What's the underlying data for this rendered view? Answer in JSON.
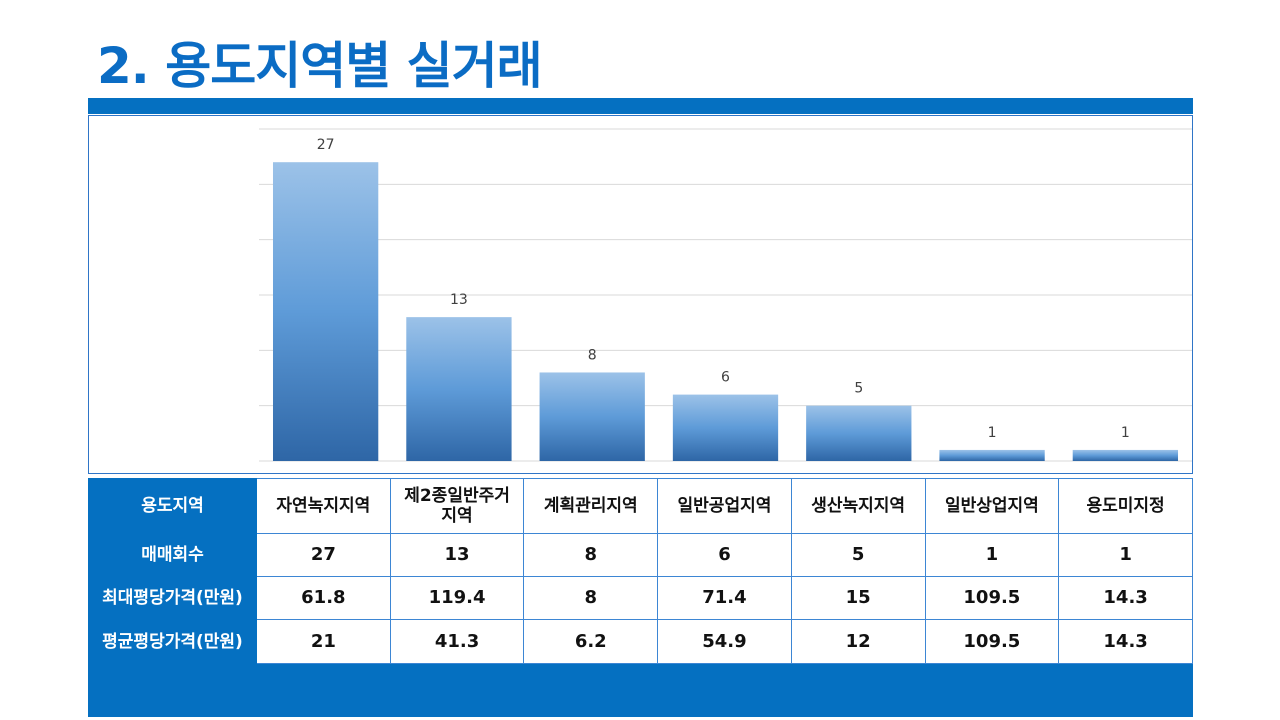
{
  "title": "2. 용도지역별 실거래",
  "chart_data": {
    "type": "bar",
    "categories": [
      "자연녹지지역",
      "제2종일반주거지역",
      "계획관리지역",
      "일반공업지역",
      "생산녹지지역",
      "일반상업지역",
      "용도미지정"
    ],
    "values": [
      27,
      13,
      8,
      6,
      5,
      1,
      1
    ],
    "ylim": [
      0,
      30
    ],
    "gridlines": [
      0,
      5,
      10,
      15,
      20,
      25,
      30
    ],
    "grid": true,
    "legend": "none"
  },
  "table": {
    "row_headers": [
      "용도지역",
      "매매회수",
      "최대평당가격(만원)",
      "평균평당가격(만원)"
    ],
    "zones": [
      "자연녹지지역",
      "제2종일반주거\n지역",
      "계획관리지역",
      "일반공업지역",
      "생산녹지지역",
      "일반상업지역",
      "용도미지정"
    ],
    "trades": [
      "27",
      "13",
      "8",
      "6",
      "5",
      "1",
      "1"
    ],
    "max_price": [
      "61.8",
      "119.4",
      "8",
      "71.4",
      "15",
      "109.5",
      "14.3"
    ],
    "avg_price": [
      "21",
      "41.3",
      "6.2",
      "54.9",
      "12",
      "109.5",
      "14.3"
    ]
  },
  "colors": {
    "brand_blue": "#0570c1",
    "title_blue": "#0b6cc4",
    "bar_top": "#9cc2e8",
    "bar_mid": "#5e9bd8",
    "bar_bottom": "#2e66a6"
  }
}
